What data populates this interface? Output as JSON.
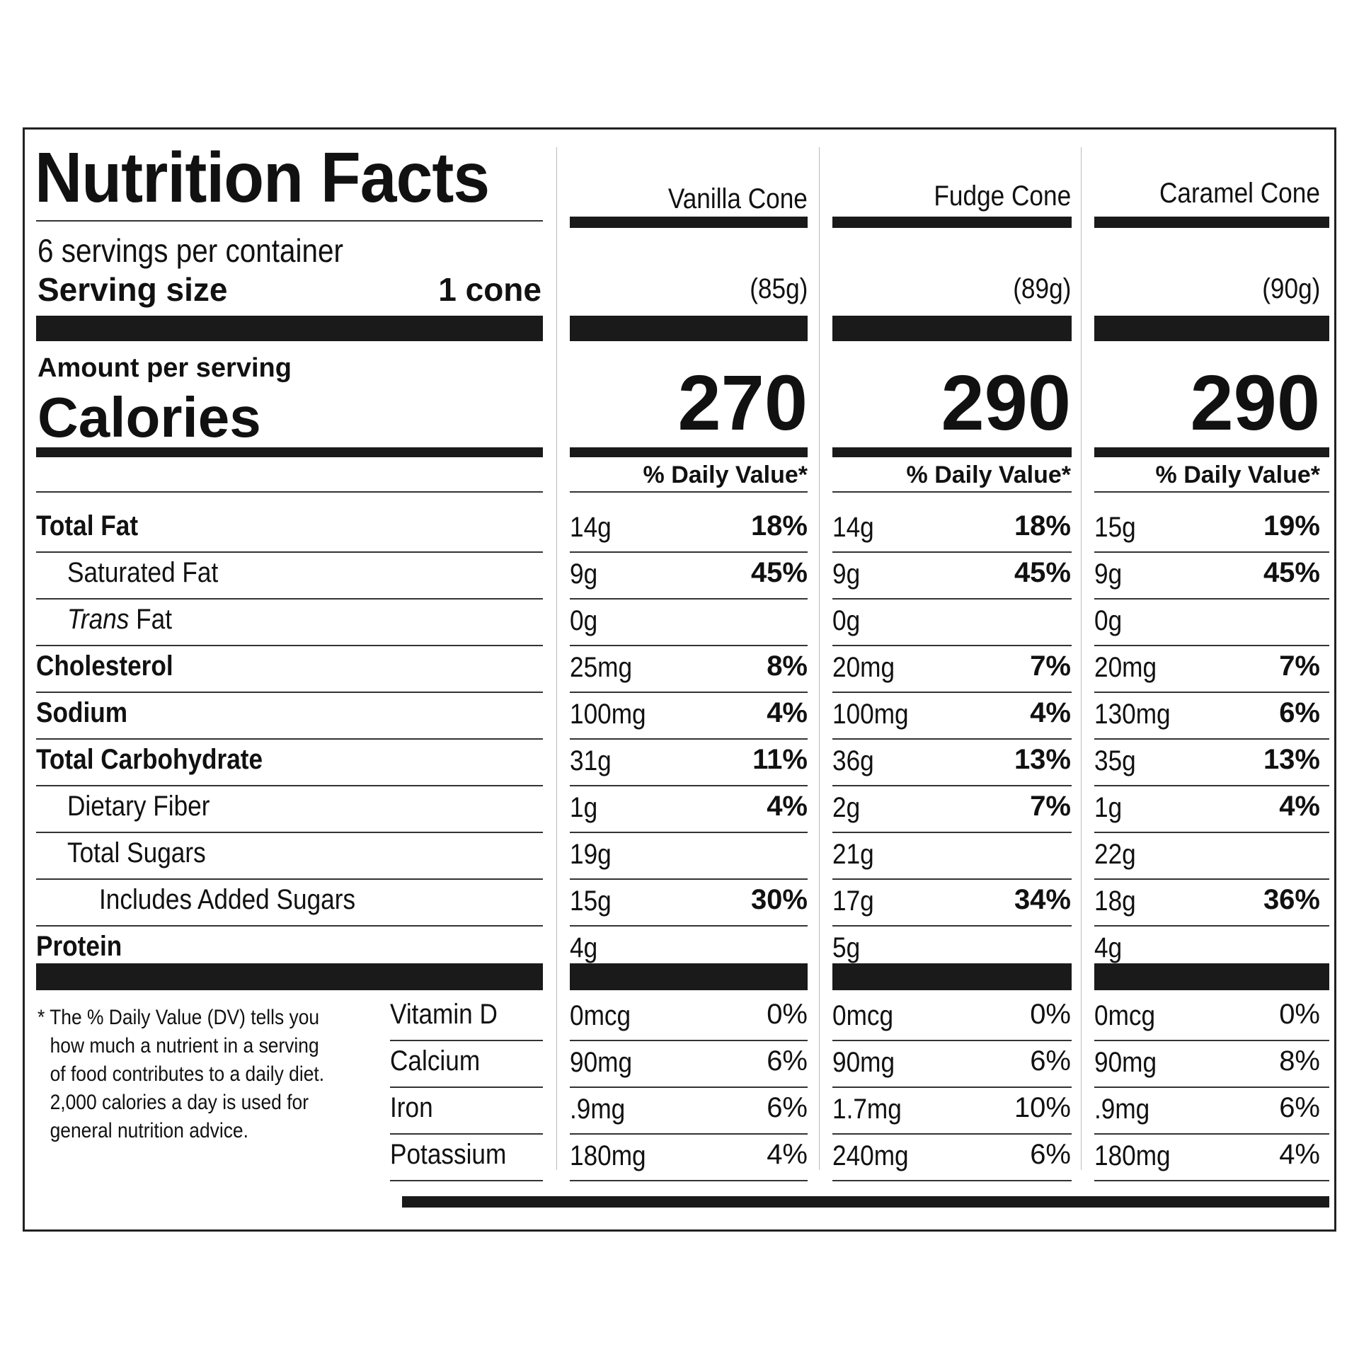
{
  "header": {
    "title": "Nutrition Facts",
    "servings": "6 servings per container",
    "serving_size_label": "Serving size",
    "serving_size_value": "1 cone",
    "amount_per_serving": "Amount per serving",
    "calories_label": "Calories",
    "dv_header": "% Daily Value*"
  },
  "columns": [
    {
      "name": "Vanilla Cone",
      "weight": "(85g)",
      "calories": "270"
    },
    {
      "name": "Fudge Cone",
      "weight": "(89g)",
      "calories": "290"
    },
    {
      "name": "Caramel Cone",
      "weight": "(90g)",
      "calories": "290"
    }
  ],
  "rows": [
    {
      "label": "Total Fat",
      "label_italic": "",
      "values": [
        {
          "amt": "14g",
          "dv": "18%"
        },
        {
          "amt": "14g",
          "dv": "18%"
        },
        {
          "amt": "15g",
          "dv": "19%"
        }
      ]
    },
    {
      "label": "Saturated Fat",
      "label_italic": "",
      "values": [
        {
          "amt": "9g",
          "dv": "45%"
        },
        {
          "amt": "9g",
          "dv": "45%"
        },
        {
          "amt": "9g",
          "dv": "45%"
        }
      ]
    },
    {
      "label": " Fat",
      "label_italic": "Trans",
      "values": [
        {
          "amt": "0g",
          "dv": ""
        },
        {
          "amt": "0g",
          "dv": ""
        },
        {
          "amt": "0g",
          "dv": ""
        }
      ]
    },
    {
      "label": "Cholesterol",
      "label_italic": "",
      "values": [
        {
          "amt": "25mg",
          "dv": "8%"
        },
        {
          "amt": "20mg",
          "dv": "7%"
        },
        {
          "amt": "20mg",
          "dv": "7%"
        }
      ]
    },
    {
      "label": "Sodium",
      "label_italic": "",
      "values": [
        {
          "amt": "100mg",
          "dv": "4%"
        },
        {
          "amt": "100mg",
          "dv": "4%"
        },
        {
          "amt": "130mg",
          "dv": "6%"
        }
      ]
    },
    {
      "label": "Total Carbohydrate",
      "label_italic": "",
      "values": [
        {
          "amt": "31g",
          "dv": "11%"
        },
        {
          "amt": "36g",
          "dv": "13%"
        },
        {
          "amt": "35g",
          "dv": "13%"
        }
      ]
    },
    {
      "label": "Dietary Fiber",
      "label_italic": "",
      "values": [
        {
          "amt": "1g",
          "dv": "4%"
        },
        {
          "amt": "2g",
          "dv": "7%"
        },
        {
          "amt": "1g",
          "dv": "4%"
        }
      ]
    },
    {
      "label": "Total Sugars",
      "label_italic": "",
      "values": [
        {
          "amt": "19g",
          "dv": ""
        },
        {
          "amt": "21g",
          "dv": ""
        },
        {
          "amt": "22g",
          "dv": ""
        }
      ]
    },
    {
      "label": "Includes Added Sugars",
      "label_italic": "",
      "values": [
        {
          "amt": "15g",
          "dv": "30%"
        },
        {
          "amt": "17g",
          "dv": "34%"
        },
        {
          "amt": "18g",
          "dv": "36%"
        }
      ]
    },
    {
      "label": "Protein",
      "label_italic": "",
      "values": [
        {
          "amt": "4g",
          "dv": ""
        },
        {
          "amt": "5g",
          "dv": ""
        },
        {
          "amt": "4g",
          "dv": ""
        }
      ]
    }
  ],
  "micros": [
    {
      "label": "Vitamin D",
      "values": [
        {
          "amt": "0mcg",
          "dv": "0%"
        },
        {
          "amt": "0mcg",
          "dv": "0%"
        },
        {
          "amt": "0mcg",
          "dv": "0%"
        }
      ]
    },
    {
      "label": "Calcium",
      "values": [
        {
          "amt": "90mg",
          "dv": "6%"
        },
        {
          "amt": "90mg",
          "dv": "6%"
        },
        {
          "amt": "90mg",
          "dv": "8%"
        }
      ]
    },
    {
      "label": "Iron",
      "values": [
        {
          "amt": ".9mg",
          "dv": "6%"
        },
        {
          "amt": "1.7mg",
          "dv": "10%"
        },
        {
          "amt": ".9mg",
          "dv": "6%"
        }
      ]
    },
    {
      "label": "Potassium",
      "values": [
        {
          "amt": "180mg",
          "dv": "4%"
        },
        {
          "amt": "240mg",
          "dv": "6%"
        },
        {
          "amt": "180mg",
          "dv": "4%"
        }
      ]
    }
  ],
  "footnote": [
    "* The % Daily Value (DV) tells you",
    "how much a nutrient in a serving",
    "of food contributes to a daily diet.",
    "2,000 calories a day is used for",
    "general nutrition advice."
  ]
}
